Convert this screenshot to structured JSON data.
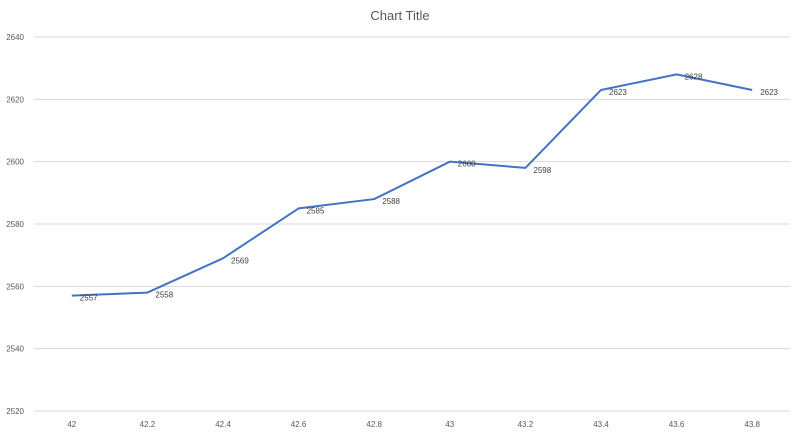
{
  "chart_data": {
    "type": "line",
    "title": "Chart Title",
    "xlabel": "",
    "ylabel": "",
    "x": [
      "42",
      "42.2",
      "42.4",
      "42.6",
      "42.8",
      "43",
      "43.2",
      "43.4",
      "43.6",
      "43.8"
    ],
    "series": [
      {
        "values": [
          2557,
          2558,
          2569,
          2585,
          2588,
          2600,
          2598,
          2623,
          2628,
          2623
        ]
      }
    ],
    "ylim": [
      2520,
      2640
    ],
    "yticks": [
      "2520",
      "2540",
      "2560",
      "2580",
      "2600",
      "2620",
      "2640"
    ],
    "grid": true,
    "legend": "none",
    "data_labels": true,
    "colors": {
      "line": "#4472C4",
      "grid": "#D9D9D9"
    }
  }
}
